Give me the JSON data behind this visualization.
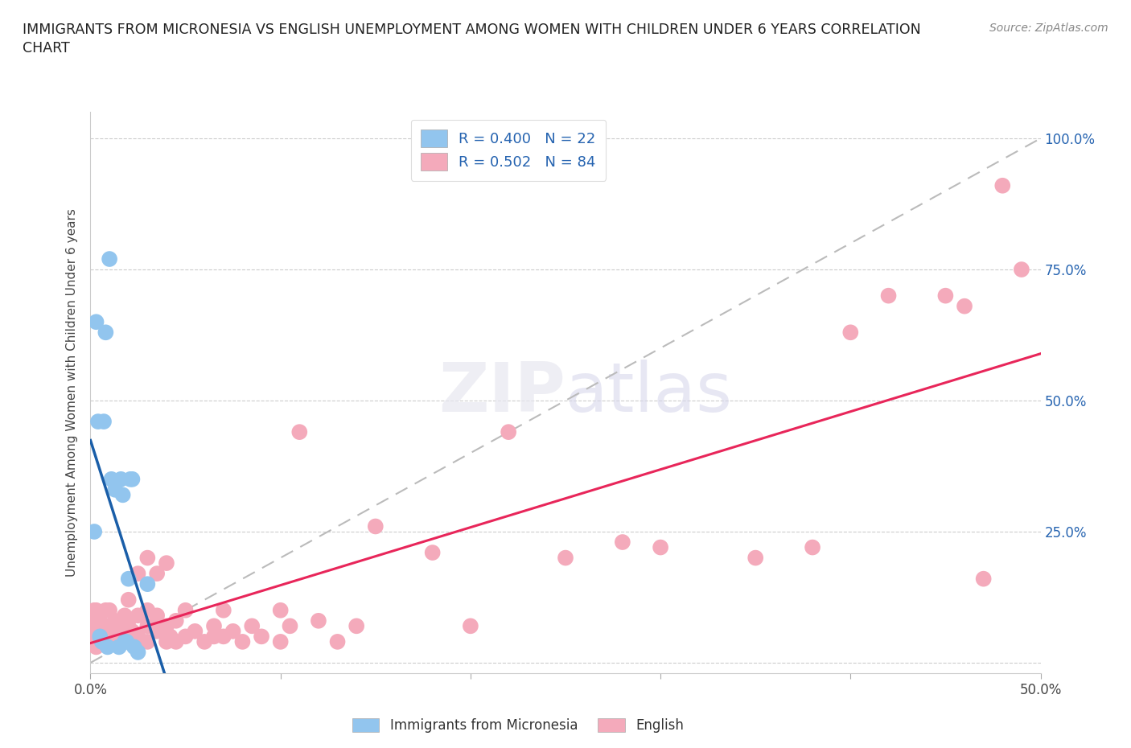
{
  "title_line1": "IMMIGRANTS FROM MICRONESIA VS ENGLISH UNEMPLOYMENT AMONG WOMEN WITH CHILDREN UNDER 6 YEARS CORRELATION",
  "title_line2": "CHART",
  "source": "Source: ZipAtlas.com",
  "ylabel": "Unemployment Among Women with Children Under 6 years",
  "xlim": [
    0.0,
    0.5
  ],
  "ylim": [
    -0.02,
    1.05
  ],
  "micronesia_color": "#92C5EE",
  "micronesia_edge_color": "#92C5EE",
  "english_color": "#F4AABB",
  "english_edge_color": "#F4AABB",
  "micronesia_line_color": "#1A5EA8",
  "english_line_color": "#E8265A",
  "trendline_dash_color": "#BBBBBB",
  "R_micronesia": 0.4,
  "N_micronesia": 22,
  "R_english": 0.502,
  "N_english": 84,
  "legend_text_color": "#2563B0",
  "right_tick_color": "#2563B0",
  "micronesia_x": [
    0.002,
    0.003,
    0.004,
    0.005,
    0.006,
    0.007,
    0.008,
    0.009,
    0.01,
    0.011,
    0.013,
    0.015,
    0.016,
    0.017,
    0.018,
    0.019,
    0.02,
    0.021,
    0.022,
    0.023,
    0.03,
    0.025
  ],
  "micronesia_y": [
    0.25,
    0.65,
    0.46,
    0.05,
    0.04,
    0.46,
    0.63,
    0.03,
    0.77,
    0.35,
    0.33,
    0.03,
    0.35,
    0.32,
    0.04,
    0.04,
    0.16,
    0.35,
    0.35,
    0.03,
    0.15,
    0.02
  ],
  "english_x": [
    0.001,
    0.001,
    0.002,
    0.002,
    0.002,
    0.003,
    0.003,
    0.003,
    0.003,
    0.004,
    0.004,
    0.005,
    0.005,
    0.005,
    0.006,
    0.006,
    0.007,
    0.008,
    0.008,
    0.009,
    0.01,
    0.01,
    0.01,
    0.012,
    0.013,
    0.015,
    0.016,
    0.017,
    0.018,
    0.02,
    0.02,
    0.02,
    0.022,
    0.025,
    0.025,
    0.025,
    0.03,
    0.03,
    0.03,
    0.03,
    0.035,
    0.035,
    0.035,
    0.04,
    0.04,
    0.04,
    0.042,
    0.045,
    0.045,
    0.05,
    0.05,
    0.055,
    0.06,
    0.065,
    0.065,
    0.07,
    0.07,
    0.075,
    0.08,
    0.085,
    0.09,
    0.1,
    0.1,
    0.105,
    0.11,
    0.12,
    0.13,
    0.14,
    0.15,
    0.18,
    0.2,
    0.22,
    0.25,
    0.28,
    0.3,
    0.35,
    0.38,
    0.4,
    0.42,
    0.45,
    0.46,
    0.47,
    0.48,
    0.49
  ],
  "english_y": [
    0.05,
    0.07,
    0.05,
    0.08,
    0.1,
    0.03,
    0.05,
    0.08,
    0.1,
    0.05,
    0.09,
    0.04,
    0.06,
    0.09,
    0.05,
    0.07,
    0.06,
    0.05,
    0.1,
    0.05,
    0.04,
    0.07,
    0.1,
    0.05,
    0.08,
    0.05,
    0.07,
    0.06,
    0.09,
    0.05,
    0.08,
    0.12,
    0.06,
    0.05,
    0.09,
    0.17,
    0.04,
    0.07,
    0.1,
    0.2,
    0.06,
    0.09,
    0.17,
    0.04,
    0.07,
    0.19,
    0.05,
    0.04,
    0.08,
    0.05,
    0.1,
    0.06,
    0.04,
    0.07,
    0.05,
    0.05,
    0.1,
    0.06,
    0.04,
    0.07,
    0.05,
    0.1,
    0.04,
    0.07,
    0.44,
    0.08,
    0.04,
    0.07,
    0.26,
    0.21,
    0.07,
    0.44,
    0.2,
    0.23,
    0.22,
    0.2,
    0.22,
    0.63,
    0.7,
    0.7,
    0.68,
    0.16,
    0.91,
    0.75
  ]
}
